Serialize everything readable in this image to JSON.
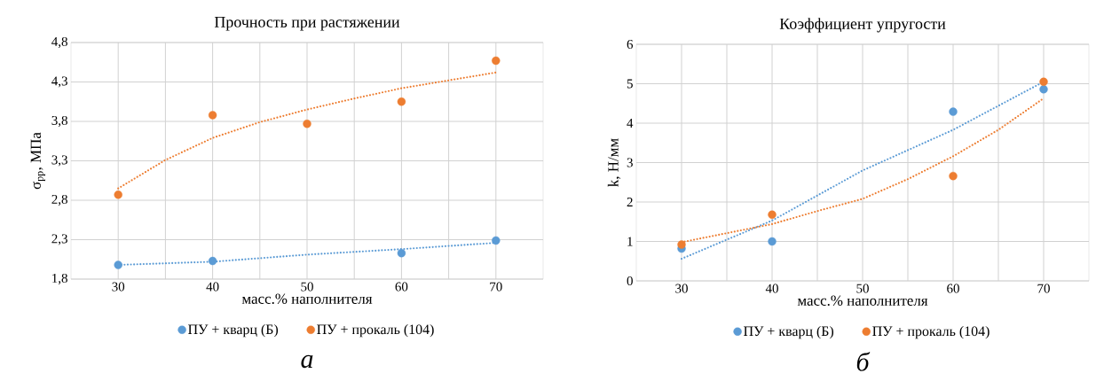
{
  "chart_data": [
    {
      "type": "scatter",
      "title": "Прочность при растяжении",
      "xlabel": "масс.% наполнителя",
      "ylabel": "σ$_{pp}$, МПа",
      "annotations": [
        "а"
      ],
      "xlim": [
        25,
        75
      ],
      "ylim": [
        1.8,
        4.8
      ],
      "xticks": [
        30,
        {
          "value": 35,
          "label": null
        },
        40,
        {
          "value": 45,
          "label": null
        },
        50,
        {
          "value": 55,
          "label": null
        },
        60,
        {
          "value": 65,
          "label": null
        },
        70
      ],
      "yticks": [
        {
          "value": 1.8,
          "label": "1,8"
        },
        {
          "value": 2.3,
          "label": "2,3"
        },
        {
          "value": 2.8,
          "label": "2,8"
        },
        {
          "value": 3.3,
          "label": "3,3"
        },
        {
          "value": 3.8,
          "label": "3,8"
        },
        {
          "value": 4.3,
          "label": "4,3"
        },
        {
          "value": 4.8,
          "label": "4,8"
        }
      ],
      "grid": true,
      "legend": "bottom",
      "series": [
        {
          "type": "line",
          "line_style": "dotted",
          "color": "#5b9bd5",
          "x": [
            30,
            40,
            50,
            60,
            70
          ],
          "values": [
            1.98,
            2.02,
            2.11,
            2.18,
            2.26
          ]
        },
        {
          "type": "line",
          "line_style": "dotted",
          "color": "#ed7d31",
          "x": [
            30,
            35,
            40,
            45,
            50,
            55,
            60,
            65,
            70
          ],
          "values": [
            2.95,
            3.31,
            3.59,
            3.79,
            3.95,
            4.09,
            4.22,
            4.32,
            4.42
          ]
        },
        {
          "name": "ПУ + кварц  (Б)",
          "marker": "circle",
          "color": "#5b9bd5",
          "x": [
            30,
            40,
            60,
            70
          ],
          "values": [
            1.98,
            2.03,
            2.13,
            2.29
          ]
        },
        {
          "name": "ПУ + прокаль  (104)",
          "marker": "circle",
          "color": "#ed7d31",
          "x": [
            30,
            40,
            50,
            60,
            70
          ],
          "values": [
            2.87,
            3.88,
            3.77,
            4.05,
            4.57
          ]
        }
      ]
    },
    {
      "type": "scatter",
      "title": "Коэффициент упругости",
      "xlabel": "масс.% наполнителя",
      "ylabel": "k, Н/мм",
      "annotations": [
        "б"
      ],
      "xlim": [
        25,
        75
      ],
      "ylim": [
        0,
        6
      ],
      "xticks": [
        30,
        {
          "value": 35,
          "label": null
        },
        40,
        {
          "value": 45,
          "label": null
        },
        50,
        {
          "value": 55,
          "label": null
        },
        60,
        {
          "value": 65,
          "label": null
        },
        70
      ],
      "yticks": [
        0,
        1,
        2,
        3,
        4,
        5,
        6
      ],
      "grid": true,
      "legend": "bottom",
      "series": [
        {
          "type": "line",
          "line_style": "dotted",
          "color": "#5b9bd5",
          "x": [
            30,
            40,
            50,
            60,
            70
          ],
          "values": [
            0.56,
            1.53,
            2.8,
            3.83,
            5.05
          ]
        },
        {
          "type": "line",
          "line_style": "dotted",
          "color": "#ed7d31",
          "x": [
            30,
            40,
            45,
            50,
            55,
            60,
            65,
            70
          ],
          "values": [
            0.98,
            1.44,
            1.77,
            2.08,
            2.58,
            3.16,
            3.83,
            4.63
          ]
        },
        {
          "name": "ПУ + кварц  (Б)",
          "marker": "circle",
          "color": "#5b9bd5",
          "x": [
            30,
            40,
            60,
            70
          ],
          "values": [
            0.82,
            1.0,
            4.29,
            4.86
          ]
        },
        {
          "name": "ПУ + прокаль  (104)",
          "marker": "circle",
          "color": "#ed7d31",
          "x": [
            30,
            40,
            60,
            70
          ],
          "values": [
            0.92,
            1.68,
            2.66,
            5.05
          ]
        }
      ]
    }
  ]
}
